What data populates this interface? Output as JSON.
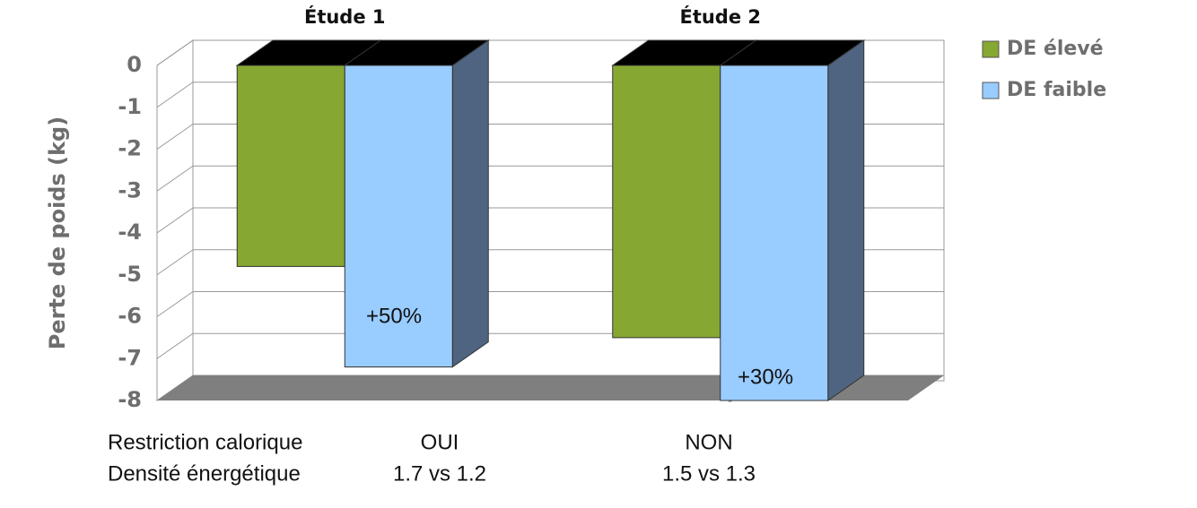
{
  "chart_data": {
    "type": "bar3d",
    "categories": [
      "Étude 1",
      "Étude 2"
    ],
    "ylabel": "Perte de poids (kg)",
    "series": [
      {
        "name": "DE élevé",
        "color": "#86a832",
        "values": [
          -4.8,
          -6.5
        ]
      },
      {
        "name": "DE faible",
        "color": "#99ccff",
        "values": [
          -7.2,
          -8
        ]
      }
    ],
    "annotations": [
      "+50%",
      "+30%"
    ],
    "ylim": [
      -8,
      0
    ],
    "yticks": [
      0,
      -1,
      -2,
      -3,
      -4,
      -5,
      -6,
      -7,
      -8
    ],
    "grid": true,
    "legend": "top-right"
  },
  "table": {
    "rows": [
      [
        "Restriction calorique",
        "OUI",
        "NON"
      ],
      [
        "Densité énergétique",
        "1.7 vs 1.2",
        "1.5 vs 1.3"
      ]
    ]
  }
}
